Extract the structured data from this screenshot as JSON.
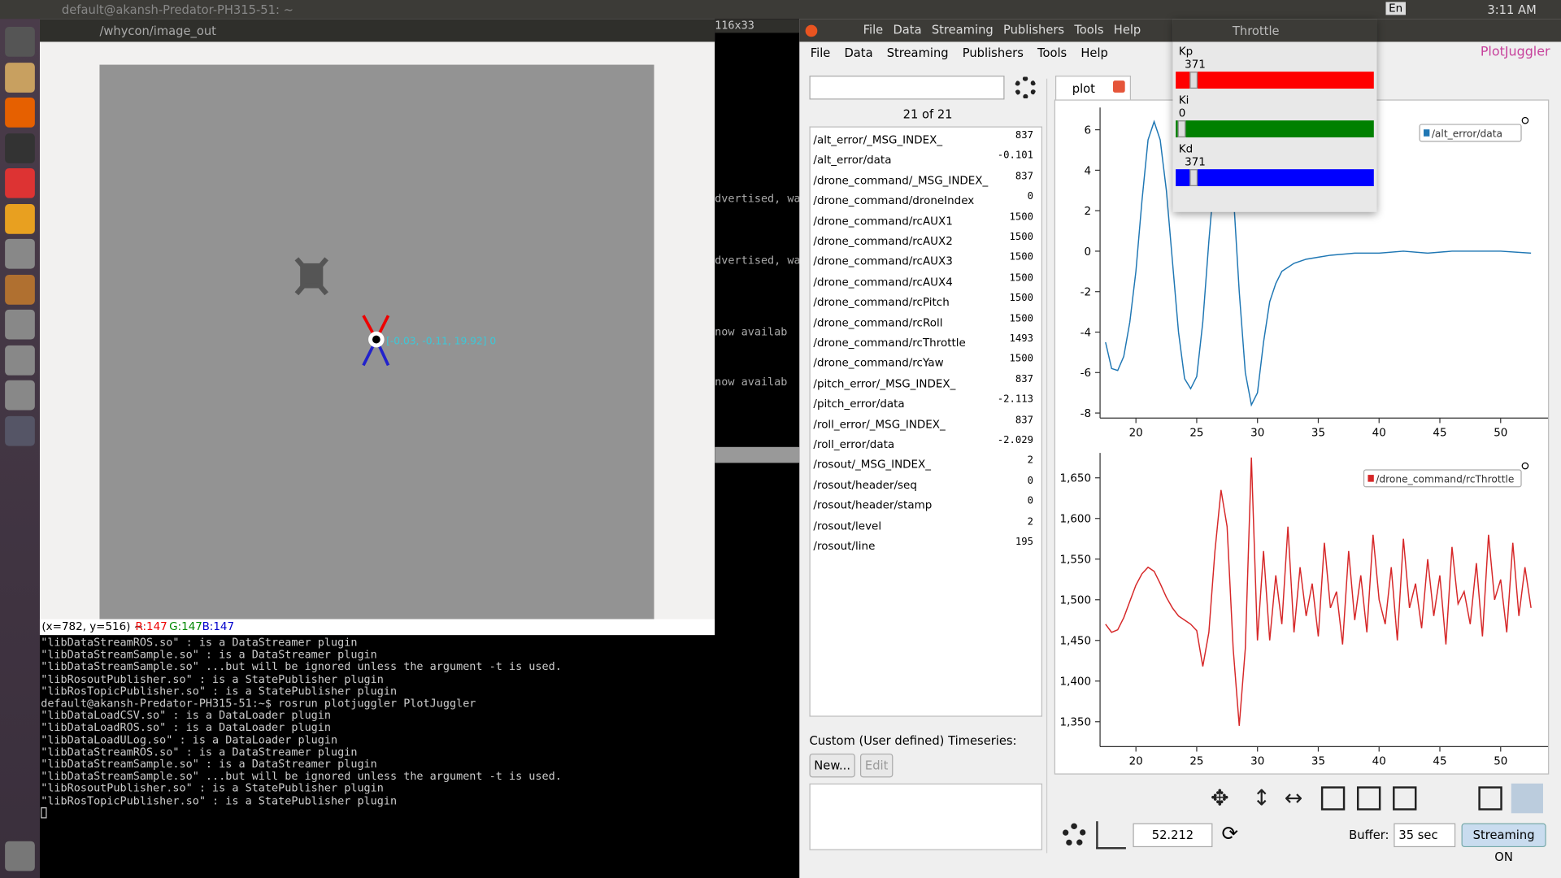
{
  "topbar": {
    "title": "default@akansh-Predator-PH315-51: ~",
    "lang": "En",
    "time": "3:11 AM"
  },
  "image_window": {
    "title": "/whycon/image_out",
    "annotation": "[-0.03, -0.11, 19.92] 0",
    "status": {
      "coords": "(x=782, y=516) ~",
      "r": "R:147",
      "g": "G:147",
      "b": "B:147"
    }
  },
  "background_terminal": {
    "size": "116x33",
    "fragments": [
      "dvertised, wa",
      "dvertised, wa",
      "now availab",
      "now availab"
    ]
  },
  "terminal": {
    "lines": [
      "\"libDataStreamROS.so\" : is a DataStreamer plugin",
      "\"libDataStreamSample.so\" : is a DataStreamer plugin",
      "\"libDataStreamSample.so\" ...but will be ignored unless the argument -t is used.",
      "\"libRosoutPublisher.so\" : is a StatePublisher plugin",
      "\"libRosTopicPublisher.so\" : is a StatePublisher plugin",
      "default@akansh-Predator-PH315-51:~$ rosrun plotjuggler PlotJuggler",
      "\"libDataLoadCSV.so\" : is a DataLoader plugin",
      "\"libDataLoadROS.so\" : is a DataLoader plugin",
      "\"libDataLoadULog.so\" : is a DataLoader plugin",
      "\"libDataStreamROS.so\" : is a DataStreamer plugin",
      "\"libDataStreamSample.so\" : is a DataStreamer plugin",
      "\"libDataStreamSample.so\" ...but will be ignored unless the argument -t is used.",
      "\"libRosoutPublisher.so\" : is a StatePublisher plugin",
      "\"libRosTopicPublisher.so\" : is a StatePublisher plugin"
    ]
  },
  "plotjuggler": {
    "global_menu": [
      "File",
      "Data",
      "Streaming",
      "Publishers",
      "Tools",
      "Help"
    ],
    "menu": [
      "File",
      "Data",
      "Streaming",
      "Publishers",
      "Tools",
      "Help"
    ],
    "logo": "PlotJuggler",
    "count": "21 of 21",
    "timeseries": [
      {
        "name": "/alt_error/_MSG_INDEX_",
        "value": 837
      },
      {
        "name": "/alt_error/data",
        "value": -0.101
      },
      {
        "name": "/drone_command/_MSG_INDEX_",
        "value": 837
      },
      {
        "name": "/drone_command/droneIndex",
        "value": 0
      },
      {
        "name": "/drone_command/rcAUX1",
        "value": 1500
      },
      {
        "name": "/drone_command/rcAUX2",
        "value": 1500
      },
      {
        "name": "/drone_command/rcAUX3",
        "value": 1500
      },
      {
        "name": "/drone_command/rcAUX4",
        "value": 1500
      },
      {
        "name": "/drone_command/rcPitch",
        "value": 1500
      },
      {
        "name": "/drone_command/rcRoll",
        "value": 1500
      },
      {
        "name": "/drone_command/rcThrottle",
        "value": 1493
      },
      {
        "name": "/drone_command/rcYaw",
        "value": 1500
      },
      {
        "name": "/pitch_error/_MSG_INDEX_",
        "value": 837
      },
      {
        "name": "/pitch_error/data",
        "value": -2.113
      },
      {
        "name": "/roll_error/_MSG_INDEX_",
        "value": 837
      },
      {
        "name": "/roll_error/data",
        "value": -2.029
      },
      {
        "name": "/rosout/_MSG_INDEX_",
        "value": 2
      },
      {
        "name": "/rosout/header/seq",
        "value": 0
      },
      {
        "name": "/rosout/header/stamp",
        "value": 0
      },
      {
        "name": "/rosout/level",
        "value": 2
      },
      {
        "name": "/rosout/line",
        "value": 195
      }
    ],
    "custom_label": "Custom (User defined) Timeseries:",
    "buttons": [
      "New...",
      "Edit"
    ],
    "tab": "plot",
    "time": "52.212",
    "buffer_label": "Buffer:",
    "buffer": "35 sec",
    "streaming": "Streaming ON"
  },
  "throttle": {
    "title": "Throttle",
    "gains": [
      {
        "name": "Kp",
        "value": 371,
        "color": "#ff0000"
      },
      {
        "name": "Ki",
        "value": 0,
        "color": "#008000"
      },
      {
        "name": "Kd",
        "value": 371,
        "color": "#0000ff"
      }
    ]
  },
  "chart_data": [
    {
      "type": "line",
      "xlim": [
        17.05,
        53.9
      ],
      "ylim": [
        -8.25,
        7.1
      ],
      "xticks": [
        20,
        25,
        30,
        35,
        40,
        45,
        50
      ],
      "yticks": [
        -8,
        -6,
        -4,
        -2,
        0,
        2,
        4,
        6
      ],
      "x": [
        17.5,
        18,
        18.5,
        19,
        19.5,
        20,
        20.5,
        21,
        21.5,
        22,
        22.5,
        23,
        23.5,
        24,
        24.5,
        25,
        25.5,
        26,
        26.5,
        27,
        27.5,
        28,
        28.5,
        29,
        29.5,
        30,
        30.5,
        31,
        31.5,
        32,
        33,
        34,
        35,
        36,
        38,
        40,
        42,
        44,
        46,
        48,
        50,
        52.5
      ],
      "series": [
        {
          "name": "/alt_error/data",
          "color": "#1f77b4",
          "values": [
            -4.5,
            -5.8,
            -5.9,
            -5.2,
            -3.5,
            -1,
            2.5,
            5.5,
            6.4,
            5.5,
            3,
            -0.5,
            -4,
            -6.3,
            -6.8,
            -6.2,
            -3.5,
            0.5,
            4,
            6.2,
            6,
            3,
            -2,
            -6,
            -7.6,
            -7,
            -4.5,
            -2.5,
            -1.6,
            -1,
            -0.6,
            -0.4,
            -0.3,
            -0.2,
            -0.1,
            -0.1,
            0,
            -0.1,
            0,
            0,
            0,
            -0.1
          ]
        }
      ]
    },
    {
      "type": "line",
      "xlim": [
        17.05,
        53.9
      ],
      "ylim": [
        1319.4,
        1680.6
      ],
      "xticks": [
        20,
        25,
        30,
        35,
        40,
        45,
        50
      ],
      "yticks": [
        {
          "value": 1350,
          "label": "1,350"
        },
        {
          "value": 1400,
          "label": "1,400"
        },
        {
          "value": 1450,
          "label": "1,450"
        },
        {
          "value": 1500,
          "label": "1,500"
        },
        {
          "value": 1550,
          "label": "1,550"
        },
        {
          "value": 1600,
          "label": "1,600"
        },
        {
          "value": 1650,
          "label": "1,650"
        }
      ],
      "x": [
        17.5,
        18,
        18.5,
        19,
        19.5,
        20,
        20.5,
        21,
        21.5,
        22,
        22.5,
        23,
        23.5,
        24,
        24.5,
        25,
        25.5,
        26,
        26.5,
        27,
        27.5,
        28,
        28.5,
        29,
        29.5,
        30,
        30.5,
        31,
        31.5,
        32,
        32.5,
        33,
        33.5,
        34,
        34.5,
        35,
        35.5,
        36,
        36.5,
        37,
        37.5,
        38,
        38.5,
        39,
        39.5,
        40,
        40.5,
        41,
        41.5,
        42,
        42.5,
        43,
        43.5,
        44,
        44.5,
        45,
        45.5,
        46,
        46.5,
        47,
        47.5,
        48,
        48.5,
        49,
        49.5,
        50,
        50.5,
        51,
        51.5,
        52,
        52.5
      ],
      "series": [
        {
          "name": "/drone_command/rcThrottle",
          "color": "#d62728",
          "values": [
            1470,
            1460,
            1463,
            1478,
            1498,
            1518,
            1532,
            1540,
            1535,
            1520,
            1503,
            1490,
            1480,
            1475,
            1470,
            1462,
            1418,
            1460,
            1560,
            1635,
            1590,
            1440,
            1345,
            1440,
            1675,
            1450,
            1560,
            1450,
            1530,
            1470,
            1590,
            1460,
            1540,
            1480,
            1520,
            1455,
            1570,
            1490,
            1510,
            1445,
            1560,
            1475,
            1530,
            1460,
            1580,
            1500,
            1470,
            1540,
            1450,
            1575,
            1490,
            1520,
            1465,
            1550,
            1480,
            1530,
            1445,
            1565,
            1495,
            1510,
            1470,
            1545,
            1455,
            1580,
            1500,
            1525,
            1460,
            1570,
            1480,
            1540,
            1490
          ]
        }
      ]
    }
  ]
}
